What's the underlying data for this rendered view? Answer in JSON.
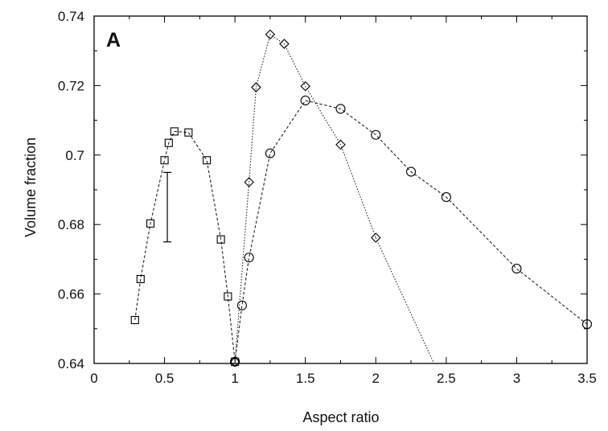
{
  "chart_data": {
    "type": "scatter",
    "panel_label": "A",
    "xlabel": "Aspect ratio",
    "ylabel": "Volume fraction",
    "xlim": [
      0,
      3.5
    ],
    "ylim": [
      0.64,
      0.74
    ],
    "xticks": [
      0,
      0.5,
      1,
      1.5,
      2,
      2.5,
      3,
      3.5
    ],
    "xtick_labels": [
      "0",
      "0.5",
      "1",
      "1.5",
      "2",
      "2.5",
      "3",
      "3.5"
    ],
    "yticks": [
      0.64,
      0.66,
      0.68,
      0.7,
      0.72,
      0.74
    ],
    "ytick_labels": [
      "0.64",
      "0.66",
      "0.68",
      "0.7",
      "0.72",
      "0.74"
    ],
    "grid": false,
    "series": [
      {
        "marker": "square",
        "line": "dashed",
        "x": [
          0.29,
          0.33,
          0.4,
          0.5,
          0.53,
          0.57,
          0.67,
          0.8,
          0.9,
          0.95,
          1.0
        ],
        "y": [
          0.6525,
          0.6643,
          0.6803,
          0.6985,
          0.7035,
          0.7068,
          0.7065,
          0.6985,
          0.6757,
          0.6593,
          0.6405
        ]
      },
      {
        "marker": "circle",
        "line": "dashed",
        "x": [
          1.0,
          1.05,
          1.1,
          1.25,
          1.5,
          1.75,
          2.0,
          2.25,
          2.5,
          3.0,
          3.5
        ],
        "y": [
          0.6405,
          0.6567,
          0.6705,
          0.7005,
          0.7157,
          0.7133,
          0.7058,
          0.6952,
          0.6879,
          0.6673,
          0.6513
        ]
      },
      {
        "marker": "diamond",
        "line": "dotted",
        "x": [
          1.0,
          1.1,
          1.15,
          1.25,
          1.35,
          1.5,
          1.75,
          2.0
        ],
        "y": [
          0.6405,
          0.6922,
          0.7195,
          0.7347,
          0.732,
          0.7198,
          0.703,
          0.6762
        ],
        "line_extension": {
          "x": [
            2.0,
            2.43
          ],
          "y": [
            0.6762,
            0.6385
          ]
        }
      }
    ],
    "error_bar": {
      "x": 0.52,
      "ylow": 0.675,
      "yhigh": 0.695
    }
  }
}
